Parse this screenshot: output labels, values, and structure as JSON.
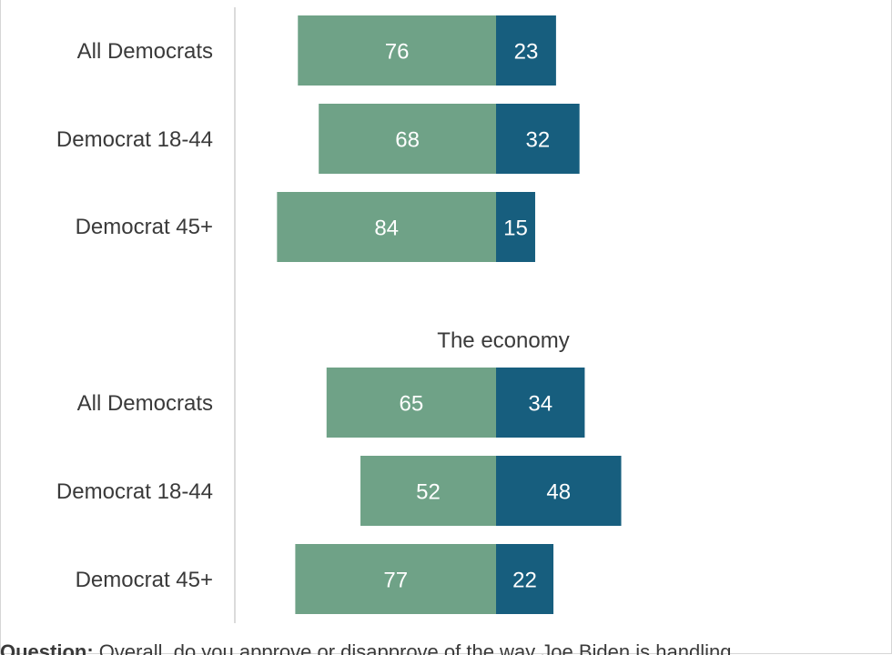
{
  "colors": {
    "approve": "#6fa287",
    "disapprove": "#175e7e",
    "axis": "#cfcfcf",
    "text": "#3a3a3a"
  },
  "chart_data": {
    "type": "bar",
    "orientation": "horizontal-diverging",
    "groups": [
      {
        "title": "",
        "categories": [
          "All Democrats",
          "Democrat 18-44",
          "Democrat 45+"
        ],
        "series": [
          {
            "values": [
              76,
              68,
              84
            ]
          },
          {
            "values": [
              23,
              32,
              15
            ]
          }
        ]
      },
      {
        "title": "The economy",
        "categories": [
          "All Democrats",
          "Democrat 18-44",
          "Democrat 45+"
        ],
        "series": [
          {
            "values": [
              65,
              52,
              77
            ]
          },
          {
            "values": [
              34,
              48,
              22
            ]
          }
        ]
      }
    ],
    "xlim": [
      -100,
      100
    ],
    "grid": false,
    "legend": "none"
  },
  "footnote": {
    "label": "Question:",
    "text": "Overall, do you approve or disapprove of the way Joe Biden is handling..."
  }
}
